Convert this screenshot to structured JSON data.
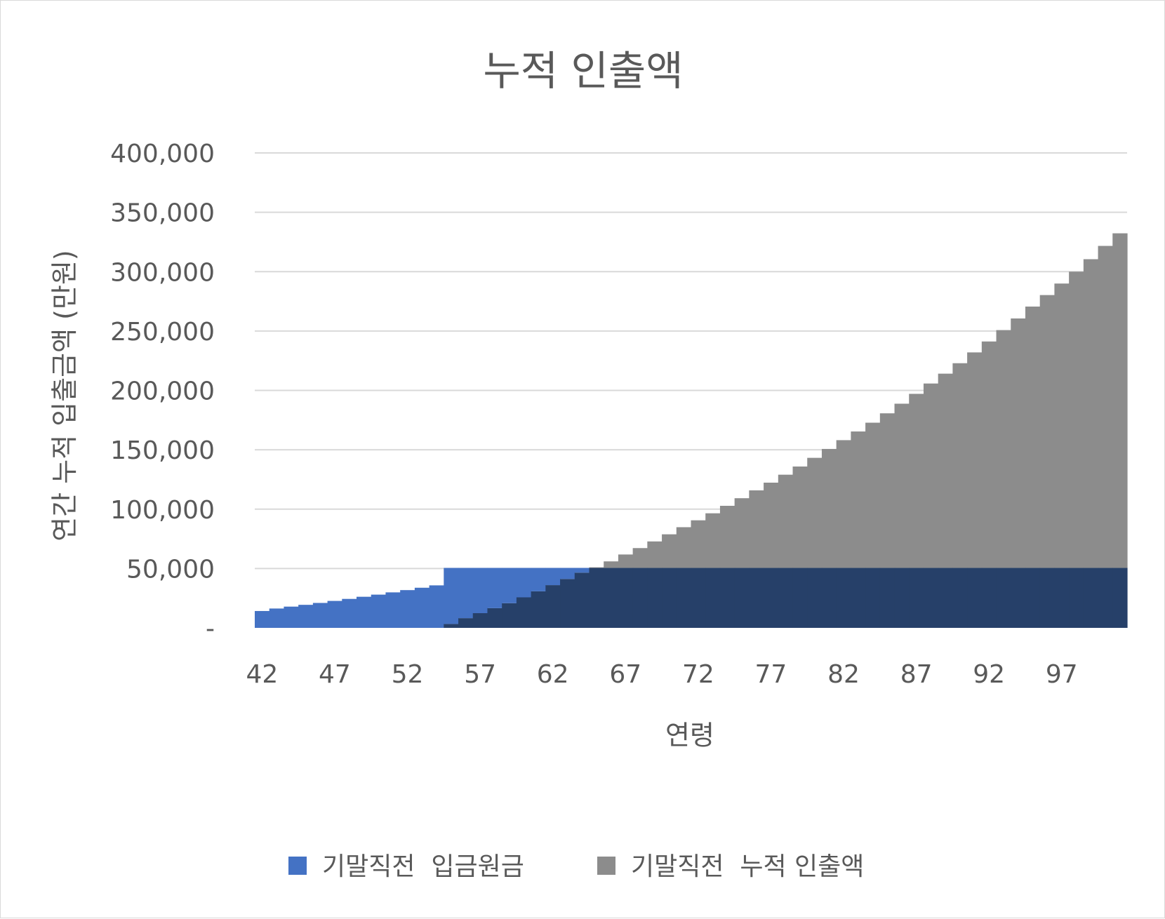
{
  "chart_data": {
    "type": "area",
    "title": "누적 인출액",
    "xlabel": "연령",
    "ylabel": "연간 누적 입출금액 (만원)",
    "ylim": [
      0,
      400000
    ],
    "yticks": [
      {
        "value": 0,
        "label": "-"
      },
      {
        "value": 50000,
        "label": "50,000"
      },
      {
        "value": 100000,
        "label": "100,000"
      },
      {
        "value": 150000,
        "label": "150,000"
      },
      {
        "value": 200000,
        "label": "200,000"
      },
      {
        "value": 250000,
        "label": "250,000"
      },
      {
        "value": 300000,
        "label": "300,000"
      },
      {
        "value": 350000,
        "label": "350,000"
      },
      {
        "value": 400000,
        "label": "400,000"
      }
    ],
    "xticks": [
      "42",
      "47",
      "52",
      "57",
      "62",
      "67",
      "72",
      "77",
      "82",
      "87",
      "92",
      "97"
    ],
    "x": [
      42,
      43,
      44,
      45,
      46,
      47,
      48,
      49,
      50,
      51,
      52,
      53,
      54,
      55,
      56,
      57,
      58,
      59,
      60,
      61,
      62,
      63,
      64,
      65,
      66,
      67,
      68,
      69,
      70,
      71,
      72,
      73,
      74,
      75,
      76,
      77,
      78,
      79,
      80,
      81,
      82,
      83,
      84,
      85,
      86,
      87,
      88,
      89,
      90,
      91,
      92,
      93,
      94,
      95,
      96,
      97,
      98,
      99,
      100,
      101
    ],
    "series": [
      {
        "name": "기말직전  입금원금",
        "color": "#4472C4",
        "values": [
          14200,
          16300,
          17900,
          19400,
          21000,
          22700,
          24400,
          26200,
          28000,
          29900,
          31800,
          33800,
          35800,
          50500,
          50500,
          50500,
          50500,
          50500,
          50500,
          50500,
          50500,
          50500,
          50500,
          50500,
          50500,
          50500,
          50500,
          50500,
          50500,
          50500,
          50500,
          50500,
          50500,
          50500,
          50500,
          50500,
          50500,
          50500,
          50500,
          50500,
          50500,
          50500,
          50500,
          50500,
          50500,
          50500,
          50500,
          50500,
          50500,
          50500,
          50500,
          50500,
          50500,
          50500,
          50500,
          50500,
          50500,
          50500,
          50500,
          50500
        ]
      },
      {
        "name": "기말직전  누적 인출액",
        "color": "#8C8C8C",
        "values": [
          0,
          0,
          0,
          0,
          0,
          0,
          0,
          0,
          0,
          0,
          0,
          0,
          0,
          3300,
          8200,
          12400,
          16600,
          20800,
          25700,
          30800,
          36000,
          41200,
          46500,
          51000,
          56000,
          61800,
          67200,
          72800,
          78800,
          84800,
          90600,
          96500,
          102800,
          109200,
          115800,
          122300,
          129000,
          135900,
          143200,
          150700,
          158100,
          165400,
          172800,
          180700,
          188800,
          197100,
          205800,
          214100,
          222900,
          232000,
          241200,
          250800,
          260600,
          270600,
          280300,
          290000,
          300000,
          310500,
          321700,
          332300
        ]
      }
    ],
    "overlap_color": "#264069",
    "legend_position": "bottom"
  }
}
